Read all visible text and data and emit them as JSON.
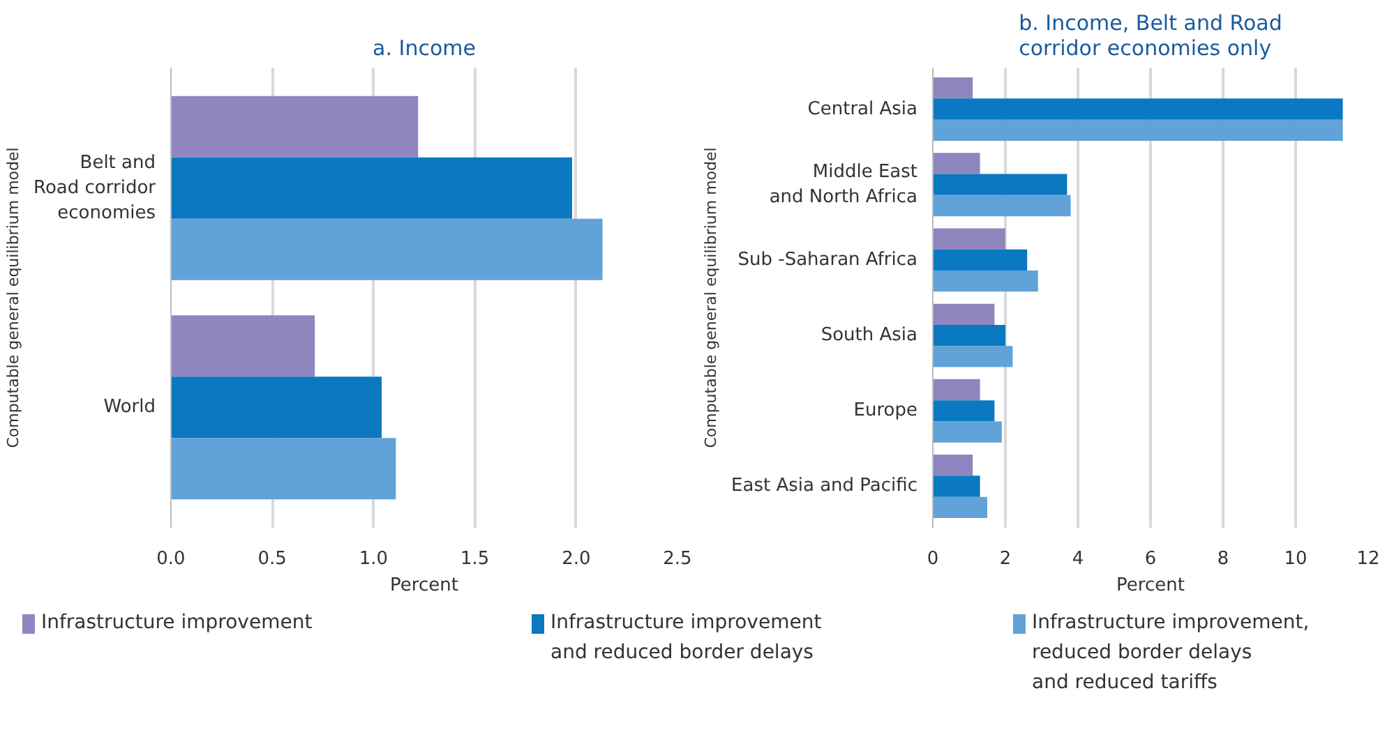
{
  "chart_data": [
    {
      "type": "bar",
      "orientation": "horizontal",
      "title": "a. Income",
      "xlabel": "Percent",
      "ylabel": "Computable general equilibrium model",
      "categories": [
        "Belt and\nRoad corridor\neconomies",
        "World"
      ],
      "series": [
        {
          "name": "Infrastructure improvement",
          "color": "#8f86bf",
          "values": [
            1.22,
            0.71
          ]
        },
        {
          "name": "Infrastructure improvement\nand reduced border delays",
          "color": "#0a79c1",
          "values": [
            1.98,
            1.04
          ]
        },
        {
          "name": "Infrastructure improvement,\nreduced border delays\nand reduced tariffs",
          "color": "#61a3d8",
          "values": [
            2.13,
            1.11
          ]
        }
      ],
      "xlim": [
        0,
        2.5
      ],
      "xticks": [
        {
          "value": 0,
          "label": "0.0"
        },
        0.5,
        {
          "value": 1,
          "label": "1.0"
        },
        1.5,
        {
          "value": 2,
          "label": "2.0"
        },
        2.5
      ],
      "grid": "x",
      "legend": "bottom"
    },
    {
      "type": "bar",
      "orientation": "horizontal",
      "title": "b. Income, Belt and Road\ncorridor economies only",
      "xlabel": "Percent",
      "ylabel": "Computable general equilibrium model",
      "categories": [
        "Central Asia",
        "Middle East\nand North Africa",
        "Sub -Saharan Africa",
        "South Asia",
        "Europe",
        "East Asia and Pacific"
      ],
      "series": [
        {
          "color": "#8f86bf",
          "values": [
            1.1,
            1.3,
            2.0,
            1.7,
            1.3,
            1.1
          ]
        },
        {
          "color": "#0a79c1",
          "values": [
            11.3,
            3.7,
            2.6,
            2.0,
            1.7,
            1.3
          ]
        },
        {
          "color": "#61a3d8",
          "values": [
            11.3,
            3.8,
            2.9,
            2.2,
            1.9,
            1.5
          ]
        }
      ],
      "xlim": [
        0,
        12
      ],
      "xticks": [
        0,
        2,
        4,
        6,
        8,
        10,
        12
      ],
      "grid": "x"
    }
  ]
}
